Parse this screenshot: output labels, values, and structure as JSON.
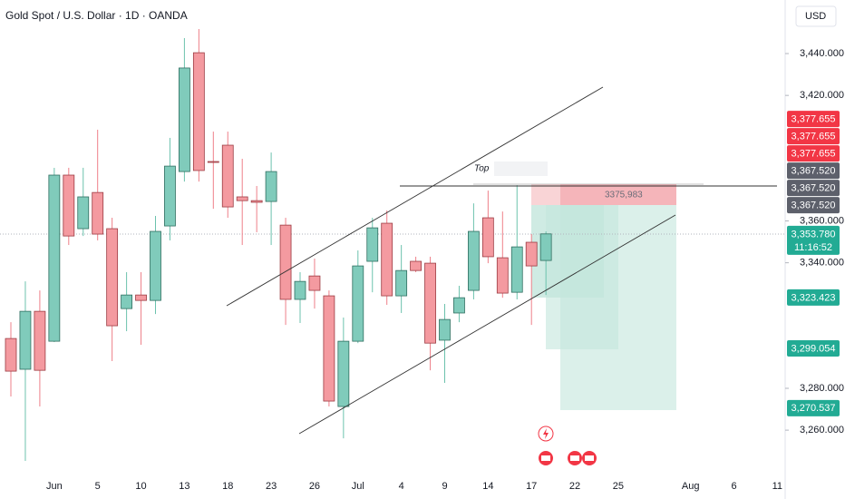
{
  "chart_data": {
    "type": "candlestick",
    "title": "Gold Spot / U.S. Dollar · 1D · OANDA",
    "currency": "USD",
    "categories": [
      null,
      null,
      null,
      "Jun",
      null,
      null,
      "5",
      null,
      null,
      "10",
      null,
      null,
      "13",
      null,
      null,
      "18",
      null,
      null,
      "23",
      null,
      null,
      "26",
      null,
      null,
      "Jul",
      null,
      null,
      "4",
      null,
      null,
      "9",
      null,
      null,
      "14",
      null,
      null,
      "17",
      null,
      null,
      "22",
      null,
      null,
      "25",
      null,
      null,
      null,
      null,
      "Aug",
      null,
      null,
      "6",
      null,
      null,
      "11"
    ],
    "open": [
      3303.8,
      3289.1,
      3316.8,
      3302.5,
      3381.9,
      3356.3,
      3373.6,
      3356.3,
      3318.1,
      3324.6,
      3322.0,
      3357.6,
      3383.6,
      3440.4,
      3388.4,
      3396.2,
      3371.5,
      3369.7,
      3369.3,
      3358.0,
      3322.5,
      3333.7,
      3324.2,
      3271.3,
      3302.5,
      3340.7,
      3358.9,
      3324.2,
      3340.7,
      3339.8,
      3303.0,
      3316.0,
      3326.8,
      3361.5,
      3342.4,
      3325.9,
      3349.8,
      3341.1,
      null,
      null,
      null,
      null,
      null,
      null,
      null,
      null,
      null,
      null,
      null,
      null,
      null,
      null,
      null,
      null
    ],
    "high": [
      3311.6,
      3331.1,
      3326.8,
      3385.4,
      3385.4,
      3385.4,
      3403.6,
      3361.5,
      3335.5,
      3335.5,
      3362.4,
      3399.7,
      3447.4,
      3451.7,
      3402.7,
      3402.7,
      3389.7,
      3376.7,
      3392.7,
      3361.5,
      3335.5,
      3342.0,
      3326.8,
      3313.8,
      3345.9,
      3361.5,
      3365.0,
      3348.5,
      3342.9,
      3342.9,
      3320.3,
      3329.0,
      3368.4,
      3374.5,
      3364.5,
      3377.1,
      3353.7,
      3355.0,
      null,
      null,
      null,
      null,
      null,
      null,
      null,
      null,
      null,
      null,
      null,
      null,
      null,
      null,
      null,
      null
    ],
    "low": [
      3276.1,
      3245.3,
      3271.3,
      3302.1,
      3348.5,
      3352.8,
      3350.7,
      3293.0,
      3307.3,
      3300.8,
      3315.5,
      3350.7,
      3378.8,
      3378.8,
      3365.8,
      3361.5,
      3348.5,
      3354.6,
      3348.5,
      3310.3,
      3311.2,
      3318.1,
      3271.3,
      3256.1,
      3301.6,
      3325.9,
      3319.9,
      3316.0,
      3335.5,
      3288.6,
      3282.6,
      3311.6,
      3322.5,
      3339.8,
      3323.3,
      3322.5,
      3310.3,
      3324.6,
      null,
      null,
      null,
      null,
      null,
      null,
      null,
      null,
      null,
      null,
      null,
      null,
      null,
      null,
      null,
      null
    ],
    "close": [
      3288.2,
      3316.8,
      3288.6,
      3381.9,
      3352.8,
      3371.5,
      3353.7,
      3309.9,
      3324.6,
      3322.0,
      3355.0,
      3386.2,
      3433.1,
      3384.1,
      3388.0,
      3366.7,
      3369.7,
      3368.9,
      3383.6,
      3322.5,
      3331.1,
      3326.8,
      3273.9,
      3302.5,
      3338.5,
      3356.7,
      3324.2,
      3336.3,
      3336.3,
      3301.6,
      3312.9,
      3323.3,
      3355.0,
      3342.9,
      3325.5,
      3347.6,
      3338.5,
      3353.8,
      null,
      null,
      null,
      null,
      null,
      null,
      null,
      null,
      null,
      null,
      null,
      null,
      null,
      null,
      null,
      null
    ],
    "up_color": "#80cbbb",
    "down_color": "#f49aa0",
    "ylim": [
      3240.1,
      3465.6
    ],
    "yticks": [
      {
        "value": 3440,
        "label": "3,440.000"
      },
      {
        "value": 3420,
        "label": "3,420.000"
      },
      {
        "value": 3360,
        "label": "3,360.000"
      },
      {
        "value": 3340,
        "label": "3,340.000"
      },
      {
        "value": 3280,
        "label": "3,280.000"
      },
      {
        "value": 3260,
        "label": "3,260.000"
      }
    ],
    "grid": false,
    "price_badges": [
      {
        "value": 3377.655,
        "label": "3,377.655",
        "color": "#f23645"
      },
      {
        "value": 3377.655,
        "label": "3,377.655",
        "color": "#f23645"
      },
      {
        "value": 3377.655,
        "label": "3,377.655",
        "color": "#f23645"
      },
      {
        "value": 3367.52,
        "label": "3,367.520",
        "color": "#5d606b"
      },
      {
        "value": 3367.52,
        "label": "3,367.520",
        "color": "#5d606b"
      },
      {
        "value": 3367.52,
        "label": "3,367.520",
        "color": "#5d606b"
      },
      {
        "value": 3353.78,
        "label": "3,353.780",
        "color": "#22ab94"
      },
      {
        "value": 3323.423,
        "label": "3,323.423",
        "color": "#22ab94"
      },
      {
        "value": 3299.054,
        "label": "3,299.054",
        "color": "#22ab94"
      },
      {
        "value": 3270.537,
        "label": "3,270.537",
        "color": "#22ab94"
      }
    ],
    "countdown": "11:16:52",
    "annotations": [
      "Top",
      "3375,983"
    ]
  }
}
